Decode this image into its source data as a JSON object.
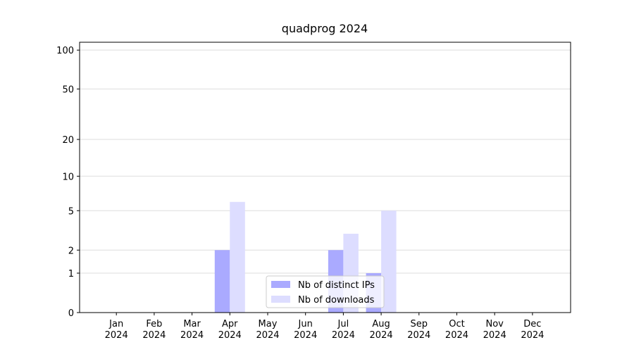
{
  "chart_data": {
    "type": "bar",
    "title": "quadprog 2024",
    "categories": [
      "Jan 2024",
      "Feb 2024",
      "Mar 2024",
      "Apr 2024",
      "May 2024",
      "Jun 2024",
      "Jul 2024",
      "Aug 2024",
      "Sep 2024",
      "Oct 2024",
      "Nov 2024",
      "Dec 2024"
    ],
    "series": [
      {
        "name": "Nb of distinct IPs",
        "color": "#aaaaff",
        "values": [
          0,
          0,
          0,
          2,
          0,
          0,
          2,
          1,
          0,
          0,
          0,
          0
        ]
      },
      {
        "name": "Nb of downloads",
        "color": "#ddddff",
        "values": [
          0,
          0,
          0,
          6,
          0,
          0,
          3,
          5,
          0,
          0,
          0,
          0
        ]
      }
    ],
    "yscale": "log1p",
    "ylim": [
      0,
      115
    ],
    "yticks": [
      0,
      1,
      2,
      5,
      10,
      20,
      50,
      100
    ],
    "grid": true,
    "legend": "lower center"
  }
}
